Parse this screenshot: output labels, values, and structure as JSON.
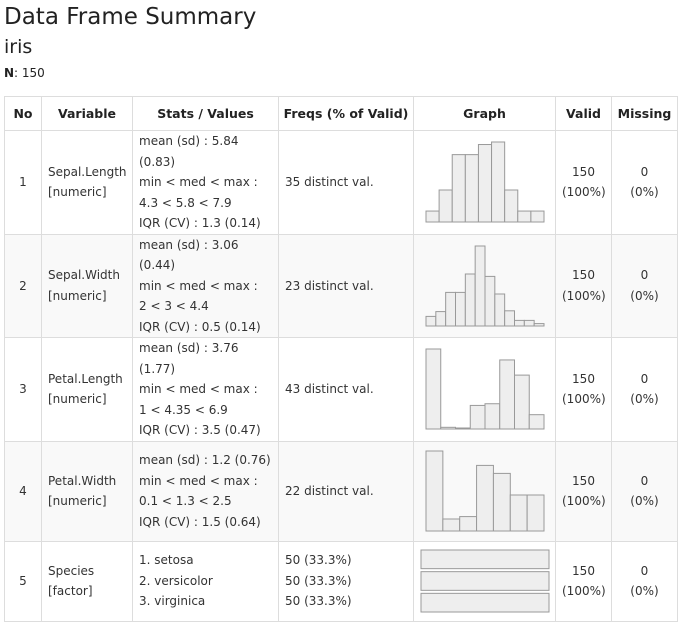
{
  "title": "Data Frame Summary",
  "dataset": "iris",
  "n_label": "N",
  "n_value": "150",
  "headers": [
    "No",
    "Variable",
    "Stats / Values",
    "Freqs (% of Valid)",
    "Graph",
    "Valid",
    "Missing"
  ],
  "rows": [
    {
      "no": "1",
      "var_name": "Sepal.Length",
      "var_type": "[numeric]",
      "stats": [
        "mean (sd) : 5.84 (0.83)",
        "min < med < max :",
        "4.3 < 5.8 < 7.9",
        "IQR (CV) : 1.3 (0.14)"
      ],
      "freqs": [
        "35 distinct val."
      ],
      "valid_n": "150",
      "valid_pct": "(100%)",
      "missing_n": "0",
      "missing_pct": "(0%)"
    },
    {
      "no": "2",
      "var_name": "Sepal.Width",
      "var_type": "[numeric]",
      "stats": [
        "mean (sd) : 3.06 (0.44)",
        "min < med < max :",
        "2 < 3 < 4.4",
        "IQR (CV) : 0.5 (0.14)"
      ],
      "freqs": [
        "23 distinct val."
      ],
      "valid_n": "150",
      "valid_pct": "(100%)",
      "missing_n": "0",
      "missing_pct": "(0%)"
    },
    {
      "no": "3",
      "var_name": "Petal.Length",
      "var_type": "[numeric]",
      "stats": [
        "mean (sd) : 3.76 (1.77)",
        "min < med < max :",
        "1 < 4.35 < 6.9",
        "IQR (CV) : 3.5 (0.47)"
      ],
      "freqs": [
        "43 distinct val."
      ],
      "valid_n": "150",
      "valid_pct": "(100%)",
      "missing_n": "0",
      "missing_pct": "(0%)"
    },
    {
      "no": "4",
      "var_name": "Petal.Width",
      "var_type": "[numeric]",
      "stats": [
        "mean (sd) : 1.2 (0.76)",
        "min < med < max :",
        "0.1 < 1.3 < 2.5",
        "IQR (CV) : 1.5 (0.64)"
      ],
      "freqs": [
        "22 distinct val."
      ],
      "valid_n": "150",
      "valid_pct": "(100%)",
      "missing_n": "0",
      "missing_pct": "(0%)"
    },
    {
      "no": "5",
      "var_name": "Species",
      "var_type": "[factor]",
      "stats": [
        "1. setosa",
        "2. versicolor",
        "3. virginica"
      ],
      "freqs": [
        "50 (33.3%)",
        "50 (33.3%)",
        "50 (33.3%)"
      ],
      "valid_n": "150",
      "valid_pct": "(100%)",
      "missing_n": "0",
      "missing_pct": "(0%)"
    }
  ],
  "colors": {
    "bar_fill": "#eeeeee",
    "bar_stroke": "#999999",
    "border": "#dddddd"
  },
  "chart_data": [
    {
      "type": "bar",
      "variable": "Sepal.Length",
      "values": [
        0.13,
        0.38,
        0.8,
        0.8,
        0.92,
        0.95,
        0.38,
        0.13,
        0.13
      ]
    },
    {
      "type": "bar",
      "variable": "Sepal.Width",
      "values": [
        0.12,
        0.18,
        0.42,
        0.42,
        0.65,
        1.0,
        0.62,
        0.4,
        0.19,
        0.07,
        0.07,
        0.03
      ]
    },
    {
      "type": "bar",
      "variable": "Petal.Length",
      "values": [
        0.95,
        0.02,
        0.0,
        0.28,
        0.3,
        0.82,
        0.64,
        0.17
      ]
    },
    {
      "type": "bar",
      "variable": "Petal.Width",
      "values": [
        1.0,
        0.15,
        0.18,
        0.82,
        0.72,
        0.45,
        0.45
      ]
    },
    {
      "type": "bar",
      "variable": "Species",
      "orientation": "horizontal",
      "categories": [
        "setosa",
        "versicolor",
        "virginica"
      ],
      "values": [
        50,
        50,
        50
      ]
    }
  ]
}
